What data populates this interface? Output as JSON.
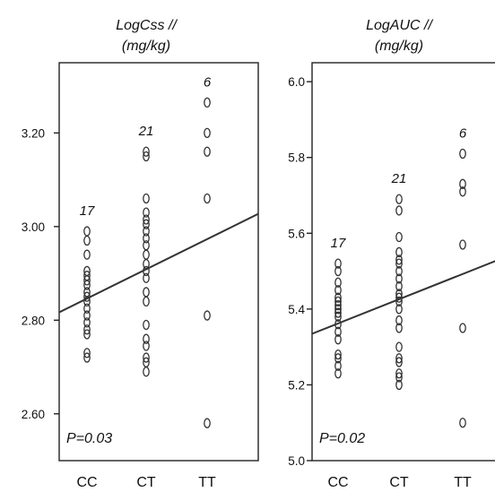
{
  "chart_data": [
    {
      "type": "scatter",
      "title": "LogCss //",
      "subtitle": "(mg/kg)",
      "categories": [
        "CC",
        "CT",
        "TT"
      ],
      "ylim": [
        2.5,
        3.35
      ],
      "yticks": [
        2.6,
        2.8,
        3.0,
        3.2
      ],
      "ytick_labels": [
        "2.60",
        "2.80",
        "3.00",
        "3.20"
      ],
      "group_counts": [
        "17",
        "21",
        "6"
      ],
      "annotation": "P=0.03",
      "regression": {
        "x": [
          0.0,
          3.6
        ],
        "y": [
          2.815,
          3.04
        ]
      },
      "series": [
        {
          "category": "CC",
          "values": [
            2.99,
            2.97,
            2.94,
            2.905,
            2.895,
            2.885,
            2.875,
            2.86,
            2.85,
            2.84,
            2.825,
            2.81,
            2.795,
            2.78,
            2.77,
            2.73,
            2.72
          ]
        },
        {
          "category": "CT",
          "values": [
            3.16,
            3.15,
            3.06,
            3.03,
            3.015,
            3.005,
            2.99,
            2.975,
            2.96,
            2.94,
            2.92,
            2.905,
            2.89,
            2.86,
            2.84,
            2.79,
            2.76,
            2.745,
            2.72,
            2.71,
            2.69
          ]
        },
        {
          "category": "TT",
          "values": [
            3.265,
            3.2,
            3.16,
            3.06,
            2.81,
            2.58
          ]
        }
      ]
    },
    {
      "type": "scatter",
      "title": "LogAUC //",
      "subtitle": "(mg/kg)",
      "categories": [
        "CC",
        "CT",
        "TT"
      ],
      "ylim": [
        5.0,
        6.05
      ],
      "yticks": [
        5.0,
        5.2,
        5.4,
        5.6,
        5.8,
        6.0
      ],
      "ytick_labels": [
        "5.0",
        "5.2",
        "5.4",
        "5.6",
        "5.8",
        "6.0"
      ],
      "group_counts": [
        "17",
        "21",
        "6"
      ],
      "annotation": "P=0.02",
      "regression": {
        "x": [
          0.0,
          3.6
        ],
        "y": [
          5.33,
          5.56
        ]
      },
      "series": [
        {
          "category": "CC",
          "values": [
            5.52,
            5.5,
            5.47,
            5.45,
            5.43,
            5.42,
            5.41,
            5.4,
            5.39,
            5.38,
            5.36,
            5.34,
            5.32,
            5.28,
            5.27,
            5.25,
            5.23
          ]
        },
        {
          "category": "CT",
          "values": [
            5.69,
            5.66,
            5.59,
            5.55,
            5.53,
            5.52,
            5.5,
            5.48,
            5.46,
            5.44,
            5.43,
            5.42,
            5.4,
            5.37,
            5.35,
            5.3,
            5.27,
            5.26,
            5.23,
            5.22,
            5.2
          ]
        },
        {
          "category": "TT",
          "values": [
            5.81,
            5.73,
            5.71,
            5.57,
            5.35,
            5.1
          ]
        }
      ]
    }
  ]
}
